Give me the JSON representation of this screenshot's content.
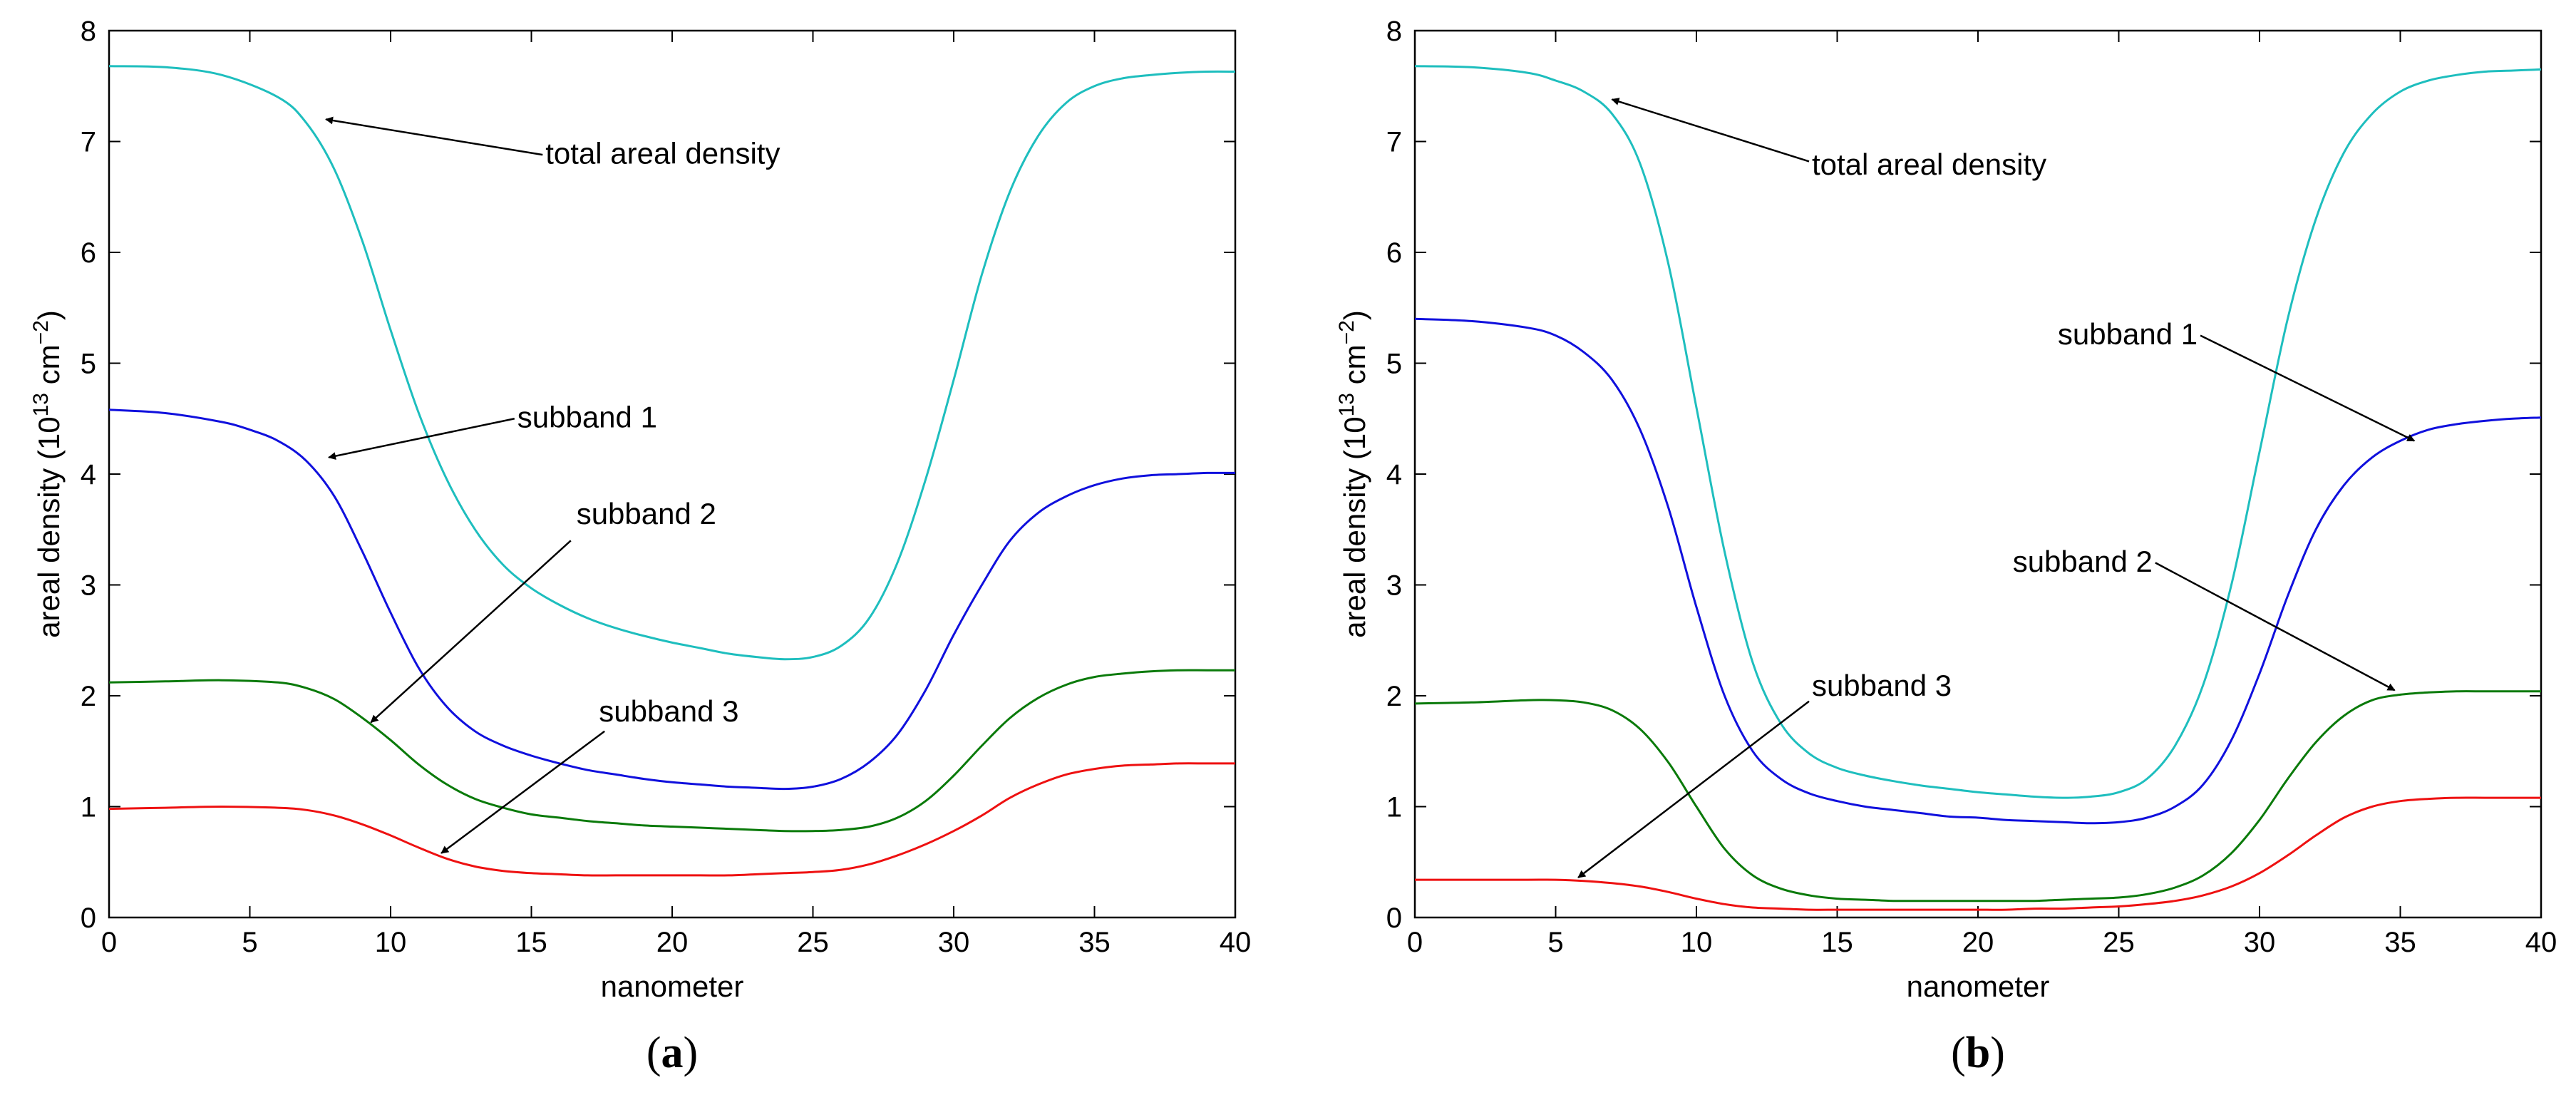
{
  "chart_data": [
    {
      "type": "line",
      "caption_letter": "a",
      "xlabel": "nanometer",
      "ylabel_prefix": "areal density (10",
      "ylabel_exp1": "13",
      "ylabel_mid": " cm",
      "ylabel_exp2": "−2",
      "ylabel_suffix": ")",
      "xlim": [
        0,
        40
      ],
      "ylim": [
        0,
        8
      ],
      "xticks": [
        0,
        5,
        10,
        15,
        20,
        25,
        30,
        35,
        40
      ],
      "yticks": [
        0,
        1,
        2,
        3,
        4,
        5,
        6,
        7,
        8
      ],
      "grid": false,
      "series": [
        {
          "name": "total areal density",
          "color": "#1ebebe",
          "x": [
            0,
            2,
            4,
            6,
            7,
            8,
            9,
            10,
            11,
            12,
            13,
            14,
            15,
            16,
            17,
            18,
            19,
            20,
            21,
            22,
            23,
            24,
            25,
            26,
            27,
            28,
            29,
            30,
            31,
            32,
            33,
            34,
            35,
            36,
            37,
            38,
            39,
            40
          ],
          "y": [
            7.68,
            7.67,
            7.6,
            7.4,
            7.17,
            6.75,
            6.1,
            5.3,
            4.55,
            3.95,
            3.5,
            3.18,
            2.97,
            2.82,
            2.7,
            2.61,
            2.54,
            2.48,
            2.43,
            2.38,
            2.35,
            2.33,
            2.35,
            2.45,
            2.7,
            3.2,
            3.95,
            4.85,
            5.8,
            6.55,
            7.05,
            7.35,
            7.5,
            7.57,
            7.6,
            7.62,
            7.63,
            7.63
          ]
        },
        {
          "name": "subband 1",
          "color": "#1010dd",
          "x": [
            0,
            2,
            4,
            5,
            6,
            7,
            8,
            9,
            10,
            11,
            12,
            13,
            14,
            15,
            16,
            17,
            18,
            19,
            20,
            21,
            22,
            23,
            24,
            25,
            26,
            27,
            28,
            29,
            30,
            31,
            32,
            33,
            34,
            35,
            36,
            37,
            38,
            39,
            40
          ],
          "y": [
            4.58,
            4.55,
            4.47,
            4.4,
            4.3,
            4.12,
            3.8,
            3.3,
            2.75,
            2.25,
            1.9,
            1.68,
            1.55,
            1.46,
            1.39,
            1.33,
            1.29,
            1.25,
            1.22,
            1.2,
            1.18,
            1.17,
            1.16,
            1.18,
            1.25,
            1.4,
            1.65,
            2.05,
            2.55,
            3.0,
            3.4,
            3.65,
            3.8,
            3.9,
            3.96,
            3.99,
            4.0,
            4.01,
            4.01
          ]
        },
        {
          "name": "subband 2",
          "color": "#0a7a0a",
          "x": [
            0,
            2,
            4,
            6,
            7,
            8,
            9,
            10,
            11,
            12,
            13,
            14,
            15,
            16,
            17,
            18,
            19,
            20,
            21,
            22,
            23,
            24,
            25,
            26,
            27,
            28,
            29,
            30,
            31,
            32,
            33,
            34,
            35,
            36,
            37,
            38,
            39,
            40
          ],
          "y": [
            2.12,
            2.13,
            2.14,
            2.12,
            2.07,
            1.97,
            1.8,
            1.6,
            1.38,
            1.2,
            1.07,
            0.99,
            0.93,
            0.9,
            0.87,
            0.85,
            0.83,
            0.82,
            0.81,
            0.8,
            0.79,
            0.78,
            0.78,
            0.79,
            0.82,
            0.9,
            1.05,
            1.28,
            1.55,
            1.8,
            1.98,
            2.1,
            2.17,
            2.2,
            2.22,
            2.23,
            2.23,
            2.23
          ]
        },
        {
          "name": "subband 3",
          "color": "#ee1111",
          "x": [
            0,
            2,
            4,
            6,
            7,
            8,
            9,
            10,
            11,
            12,
            13,
            14,
            15,
            16,
            17,
            18,
            19,
            20,
            21,
            22,
            23,
            24,
            25,
            26,
            27,
            28,
            29,
            30,
            31,
            32,
            33,
            34,
            35,
            36,
            37,
            38,
            39,
            40
          ],
          "y": [
            0.98,
            0.99,
            1.0,
            0.99,
            0.97,
            0.92,
            0.84,
            0.74,
            0.63,
            0.53,
            0.46,
            0.42,
            0.4,
            0.39,
            0.38,
            0.38,
            0.38,
            0.38,
            0.38,
            0.38,
            0.39,
            0.4,
            0.41,
            0.43,
            0.48,
            0.56,
            0.66,
            0.78,
            0.92,
            1.08,
            1.2,
            1.29,
            1.34,
            1.37,
            1.38,
            1.39,
            1.39,
            1.39
          ]
        }
      ],
      "annotations": [
        {
          "text": "total areal density",
          "x": 15.5,
          "y": 6.8,
          "anchor": "start",
          "ax": 15.4,
          "ay": 6.88,
          "hx": 7.7,
          "hy": 7.2
        },
        {
          "text": "subband 1",
          "x": 14.5,
          "y": 4.42,
          "anchor": "start",
          "ax": 14.4,
          "ay": 4.5,
          "hx": 7.8,
          "hy": 4.15
        },
        {
          "text": "subband 2",
          "x": 16.6,
          "y": 3.55,
          "anchor": "start",
          "ax": 16.4,
          "ay": 3.4,
          "hx": 9.3,
          "hy": 1.76
        },
        {
          "text": "subband 3",
          "x": 17.4,
          "y": 1.77,
          "anchor": "start",
          "ax": 17.6,
          "ay": 1.68,
          "hx": 11.8,
          "hy": 0.58
        }
      ]
    },
    {
      "type": "line",
      "caption_letter": "b",
      "xlabel": "nanometer",
      "ylabel_prefix": "areal density (10",
      "ylabel_exp1": "13",
      "ylabel_mid": " cm",
      "ylabel_exp2": "−2",
      "ylabel_suffix": ")",
      "xlim": [
        0,
        40
      ],
      "ylim": [
        0,
        8
      ],
      "xticks": [
        0,
        5,
        10,
        15,
        20,
        25,
        30,
        35,
        40
      ],
      "yticks": [
        0,
        1,
        2,
        3,
        4,
        5,
        6,
        7,
        8
      ],
      "grid": false,
      "series": [
        {
          "name": "total areal density",
          "color": "#1ebebe",
          "x": [
            0,
            2,
            4,
            5,
            6,
            7,
            8,
            9,
            10,
            11,
            12,
            13,
            14,
            15,
            16,
            17,
            18,
            19,
            20,
            21,
            22,
            23,
            24,
            25,
            26,
            27,
            28,
            29,
            30,
            31,
            32,
            33,
            34,
            35,
            36,
            37,
            38,
            39,
            40
          ],
          "y": [
            7.68,
            7.67,
            7.62,
            7.55,
            7.45,
            7.25,
            6.8,
            5.9,
            4.6,
            3.3,
            2.3,
            1.75,
            1.48,
            1.35,
            1.28,
            1.23,
            1.19,
            1.16,
            1.13,
            1.11,
            1.09,
            1.08,
            1.09,
            1.13,
            1.25,
            1.55,
            2.1,
            3.0,
            4.2,
            5.4,
            6.3,
            6.9,
            7.25,
            7.45,
            7.55,
            7.6,
            7.63,
            7.64,
            7.65
          ]
        },
        {
          "name": "subband 1",
          "color": "#1010dd",
          "x": [
            0,
            2,
            4,
            5,
            6,
            7,
            8,
            9,
            10,
            11,
            12,
            13,
            14,
            15,
            16,
            17,
            18,
            19,
            20,
            21,
            22,
            23,
            24,
            25,
            26,
            27,
            28,
            29,
            30,
            31,
            32,
            33,
            34,
            35,
            36,
            37,
            38,
            39,
            40
          ],
          "y": [
            5.4,
            5.38,
            5.32,
            5.25,
            5.1,
            4.85,
            4.4,
            3.7,
            2.8,
            2.0,
            1.5,
            1.25,
            1.12,
            1.05,
            1.0,
            0.97,
            0.94,
            0.91,
            0.9,
            0.88,
            0.87,
            0.86,
            0.85,
            0.86,
            0.9,
            1.0,
            1.2,
            1.6,
            2.2,
            2.9,
            3.5,
            3.9,
            4.15,
            4.3,
            4.4,
            4.45,
            4.48,
            4.5,
            4.51
          ]
        },
        {
          "name": "subband 2",
          "color": "#0a7a0a",
          "x": [
            0,
            2,
            4,
            5,
            6,
            7,
            8,
            9,
            10,
            11,
            12,
            13,
            14,
            15,
            16,
            17,
            18,
            19,
            20,
            21,
            22,
            23,
            24,
            25,
            26,
            27,
            28,
            29,
            30,
            31,
            32,
            33,
            34,
            35,
            36,
            37,
            38,
            39,
            40
          ],
          "y": [
            1.93,
            1.94,
            1.96,
            1.96,
            1.94,
            1.87,
            1.7,
            1.4,
            1.0,
            0.62,
            0.38,
            0.26,
            0.2,
            0.17,
            0.16,
            0.15,
            0.15,
            0.15,
            0.15,
            0.15,
            0.15,
            0.16,
            0.17,
            0.18,
            0.21,
            0.27,
            0.38,
            0.58,
            0.88,
            1.25,
            1.58,
            1.82,
            1.96,
            2.01,
            2.03,
            2.04,
            2.04,
            2.04,
            2.04
          ]
        },
        {
          "name": "subband 3",
          "color": "#ee1111",
          "x": [
            0,
            2,
            4,
            5,
            6,
            7,
            8,
            9,
            10,
            11,
            12,
            13,
            14,
            15,
            16,
            17,
            18,
            19,
            20,
            21,
            22,
            23,
            24,
            25,
            26,
            27,
            28,
            29,
            30,
            31,
            32,
            33,
            34,
            35,
            36,
            37,
            38,
            39,
            40
          ],
          "y": [
            0.34,
            0.34,
            0.34,
            0.34,
            0.33,
            0.31,
            0.28,
            0.23,
            0.17,
            0.12,
            0.09,
            0.08,
            0.07,
            0.07,
            0.07,
            0.07,
            0.07,
            0.07,
            0.07,
            0.07,
            0.08,
            0.08,
            0.09,
            0.1,
            0.12,
            0.15,
            0.2,
            0.28,
            0.4,
            0.56,
            0.74,
            0.9,
            1.0,
            1.05,
            1.07,
            1.08,
            1.08,
            1.08,
            1.08
          ]
        }
      ],
      "annotations": [
        {
          "text": "total areal density",
          "x": 14.1,
          "y": 6.7,
          "anchor": "start",
          "ax": 14.0,
          "ay": 6.82,
          "hx": 7.0,
          "hy": 7.38
        },
        {
          "text": "subband 1",
          "x": 27.8,
          "y": 5.17,
          "anchor": "end",
          "ax": 27.9,
          "ay": 5.25,
          "hx": 35.5,
          "hy": 4.3
        },
        {
          "text": "subband 2",
          "x": 26.2,
          "y": 3.12,
          "anchor": "end",
          "ax": 26.3,
          "ay": 3.2,
          "hx": 34.8,
          "hy": 2.05
        },
        {
          "text": "subband 3",
          "x": 14.1,
          "y": 2.0,
          "anchor": "start",
          "ax": 14.0,
          "ay": 1.95,
          "hx": 5.8,
          "hy": 0.36
        }
      ]
    }
  ]
}
